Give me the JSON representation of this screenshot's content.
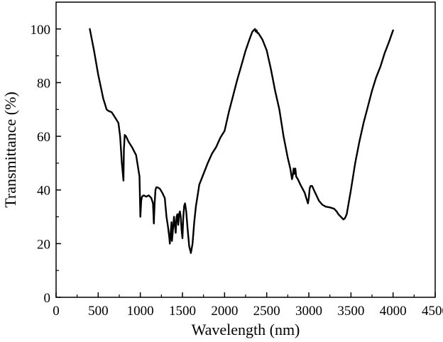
{
  "chart_data": {
    "type": "line",
    "title": "",
    "xlabel": "Wavelength (nm)",
    "ylabel": "Transmittance (%)",
    "xlim": [
      0,
      4500
    ],
    "ylim": [
      0,
      110
    ],
    "xticks": [
      0,
      500,
      1000,
      1500,
      2000,
      2500,
      3000,
      3500,
      4000,
      4500
    ],
    "yticks": [
      0,
      20,
      40,
      60,
      80,
      100
    ],
    "grid": false,
    "legend": "none",
    "line_color": "#000000",
    "series": [
      {
        "x": [
          400,
          450,
          500,
          560,
          600,
          620,
          660,
          700,
          740,
          760,
          780,
          790,
          800,
          805,
          815,
          830,
          860,
          900,
          950,
          990,
          1000,
          1010,
          1020,
          1040,
          1070,
          1100,
          1130,
          1150,
          1160,
          1170,
          1180,
          1190,
          1200,
          1230,
          1260,
          1290,
          1310,
          1330,
          1345,
          1350,
          1360,
          1370,
          1375,
          1390,
          1400,
          1410,
          1420,
          1430,
          1440,
          1450,
          1460,
          1470,
          1480,
          1490,
          1500,
          1510,
          1520,
          1530,
          1545,
          1560,
          1580,
          1600,
          1620,
          1640,
          1660,
          1680,
          1700,
          1750,
          1800,
          1850,
          1900,
          1950,
          2000,
          2050,
          2100,
          2150,
          2200,
          2250,
          2300,
          2330,
          2360,
          2370,
          2380,
          2390,
          2400,
          2450,
          2500,
          2550,
          2600,
          2650,
          2700,
          2750,
          2780,
          2800,
          2810,
          2820,
          2830,
          2840,
          2850,
          2870,
          2900,
          2950,
          2980,
          2990,
          3000,
          3010,
          3020,
          3040,
          3060,
          3090,
          3120,
          3160,
          3200,
          3250,
          3300,
          3330,
          3350,
          3380,
          3410,
          3430,
          3450,
          3500,
          3550,
          3600,
          3650,
          3700,
          3750,
          3800,
          3850,
          3900,
          3950,
          4000
        ],
        "y": [
          100,
          92,
          83,
          74,
          70,
          69.5,
          69,
          67,
          65,
          60,
          50,
          47,
          43.5,
          55,
          60.5,
          60,
          58,
          56,
          53,
          45,
          30,
          36,
          37.5,
          38,
          37.5,
          38,
          37,
          35,
          27.5,
          35,
          40,
          41,
          41,
          40.5,
          39,
          37,
          30,
          26,
          22,
          20,
          24,
          28,
          21,
          26,
          30,
          27,
          24,
          30,
          31,
          27,
          31,
          32,
          30,
          25,
          22,
          30,
          34,
          35,
          32,
          26,
          19,
          16.5,
          20,
          28,
          34,
          38,
          42,
          46,
          50,
          53.5,
          56,
          59.5,
          62,
          69,
          75,
          81,
          86.5,
          92,
          96.5,
          99,
          100,
          99,
          99.5,
          98.5,
          98.5,
          96,
          92,
          85,
          77,
          70,
          60,
          52,
          48,
          44,
          45.5,
          48,
          46,
          48,
          45,
          44,
          42,
          39,
          36,
          35,
          37,
          40.5,
          41.5,
          41.5,
          40,
          38,
          36,
          34.5,
          33.8,
          33.5,
          33,
          32,
          31,
          30,
          29,
          29.5,
          31,
          40,
          50,
          58,
          65,
          71,
          77,
          82,
          86,
          91,
          95,
          99.5
        ]
      }
    ]
  }
}
